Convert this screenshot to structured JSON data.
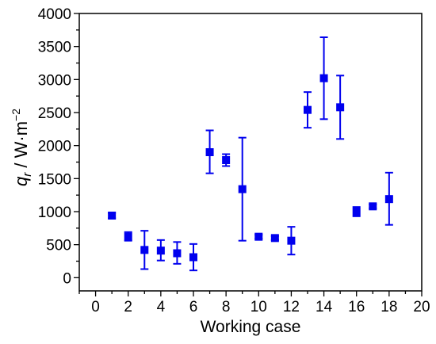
{
  "chart_data": {
    "type": "scatter",
    "xlabel": "Working case",
    "ylabel": {
      "symbol": "q",
      "subscript": "r",
      "unit_text": " / W·m",
      "unit_exponent": "−2"
    },
    "xlim": [
      -1,
      20
    ],
    "ylim": [
      -200,
      4000
    ],
    "x_ticks": [
      0,
      2,
      4,
      6,
      8,
      10,
      12,
      14,
      16,
      18,
      20
    ],
    "y_ticks": [
      0,
      500,
      1000,
      1500,
      2000,
      2500,
      3000,
      3500,
      4000
    ],
    "grid": false,
    "legend": "none",
    "marker": "square",
    "color": "#0000ee",
    "points": [
      {
        "x": 1,
        "y": 940,
        "lo": 900,
        "hi": 980
      },
      {
        "x": 2,
        "y": 620,
        "lo": 560,
        "hi": 690
      },
      {
        "x": 3,
        "y": 420,
        "lo": 130,
        "hi": 710
      },
      {
        "x": 4,
        "y": 410,
        "lo": 260,
        "hi": 570
      },
      {
        "x": 5,
        "y": 370,
        "lo": 210,
        "hi": 540
      },
      {
        "x": 6,
        "y": 310,
        "lo": 110,
        "hi": 510
      },
      {
        "x": 7,
        "y": 1900,
        "lo": 1580,
        "hi": 2230
      },
      {
        "x": 8,
        "y": 1780,
        "lo": 1690,
        "hi": 1870
      },
      {
        "x": 9,
        "y": 1340,
        "lo": 560,
        "hi": 2120
      },
      {
        "x": 10,
        "y": 620,
        "lo": 590,
        "hi": 650
      },
      {
        "x": 11,
        "y": 600,
        "lo": 570,
        "hi": 630
      },
      {
        "x": 12,
        "y": 560,
        "lo": 350,
        "hi": 770
      },
      {
        "x": 13,
        "y": 2540,
        "lo": 2270,
        "hi": 2810
      },
      {
        "x": 14,
        "y": 3020,
        "lo": 2400,
        "hi": 3640
      },
      {
        "x": 15,
        "y": 2580,
        "lo": 2100,
        "hi": 3060
      },
      {
        "x": 16,
        "y": 1000,
        "lo": 930,
        "hi": 1070
      },
      {
        "x": 17,
        "y": 1080,
        "lo": 1050,
        "hi": 1110
      },
      {
        "x": 18,
        "y": 1190,
        "lo": 800,
        "hi": 1590
      }
    ]
  }
}
